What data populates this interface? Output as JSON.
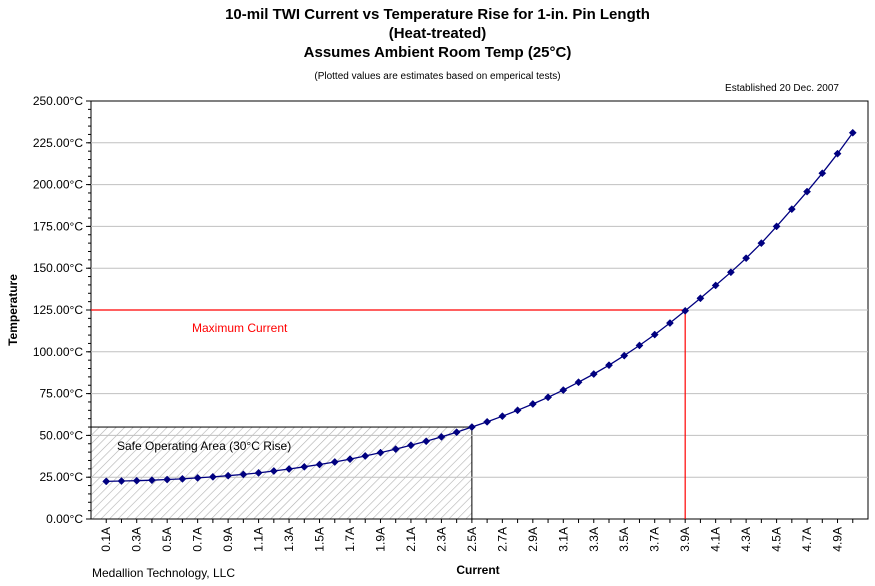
{
  "chart_data": {
    "type": "line",
    "title": "10-mil TWI Current vs Temperature Rise for 1-in. Pin Length",
    "title_line2": "(Heat-treated)",
    "title_line3": "Assumes Ambient Room Temp (25°C)",
    "subtitle": "(Plotted values are estimates based on emperical tests)",
    "established": "Established 20 Dec. 2007",
    "footer": "Medallion Technology, LLC",
    "xlabel": "Current",
    "ylabel": "Temperature",
    "x_tick_labels": [
      "0.1A",
      "0.3A",
      "0.5A",
      "0.7A",
      "0.9A",
      "1.1A",
      "1.3A",
      "1.5A",
      "1.7A",
      "1.9A",
      "2.1A",
      "2.3A",
      "2.5A",
      "2.7A",
      "2.9A",
      "3.1A",
      "3.3A",
      "3.5A",
      "3.7A",
      "3.9A",
      "4.1A",
      "4.3A",
      "4.5A",
      "4.7A",
      "4.9A"
    ],
    "y_tick_labels": [
      "0.00°C",
      "25.00°C",
      "50.00°C",
      "75.00°C",
      "100.00°C",
      "125.00°C",
      "150.00°C",
      "175.00°C",
      "200.00°C",
      "225.00°C",
      "250.00°C"
    ],
    "ylim": [
      0,
      250
    ],
    "grid": "horizontal",
    "series": [
      {
        "color": "#000080",
        "x": [
          0.1,
          0.2,
          0.3,
          0.4,
          0.5,
          0.6,
          0.7,
          0.8,
          0.9,
          1.0,
          1.1,
          1.2,
          1.3,
          1.4,
          1.5,
          1.6,
          1.7,
          1.8,
          1.9,
          2.0,
          2.1,
          2.2,
          2.3,
          2.4,
          2.5,
          2.6,
          2.7,
          2.8,
          2.9,
          3.0,
          3.1,
          3.2,
          3.3,
          3.4,
          3.5,
          3.6,
          3.7,
          3.8,
          3.9,
          4.0,
          4.1,
          4.2,
          4.3,
          4.4,
          4.5,
          4.6,
          4.7,
          4.8,
          4.9,
          5.0
        ],
        "y": [
          22.5,
          22.7,
          22.9,
          23.2,
          23.6,
          24.0,
          24.6,
          25.2,
          25.9,
          26.7,
          27.6,
          28.7,
          29.9,
          31.2,
          32.6,
          34.1,
          35.8,
          37.7,
          39.7,
          41.8,
          44.1,
          46.5,
          49.1,
          51.9,
          55.0,
          58.1,
          61.5,
          65.0,
          68.8,
          72.8,
          77.1,
          81.8,
          86.7,
          92.0,
          97.7,
          103.8,
          110.3,
          117.2,
          124.5,
          132.0,
          139.7,
          147.6,
          156.0,
          165.0,
          175.0,
          185.3,
          195.8,
          206.8,
          218.5,
          231.0
        ]
      }
    ],
    "annotations": {
      "max_current_label": "Maximum Current",
      "max_current_x": 3.9,
      "max_current_y": 125,
      "max_color": "#ff0000",
      "safe_area_label": "Safe Operating Area (30°C Rise)",
      "safe_area_x": [
        0.1,
        2.5
      ],
      "safe_area_y": [
        0,
        55
      ]
    }
  }
}
